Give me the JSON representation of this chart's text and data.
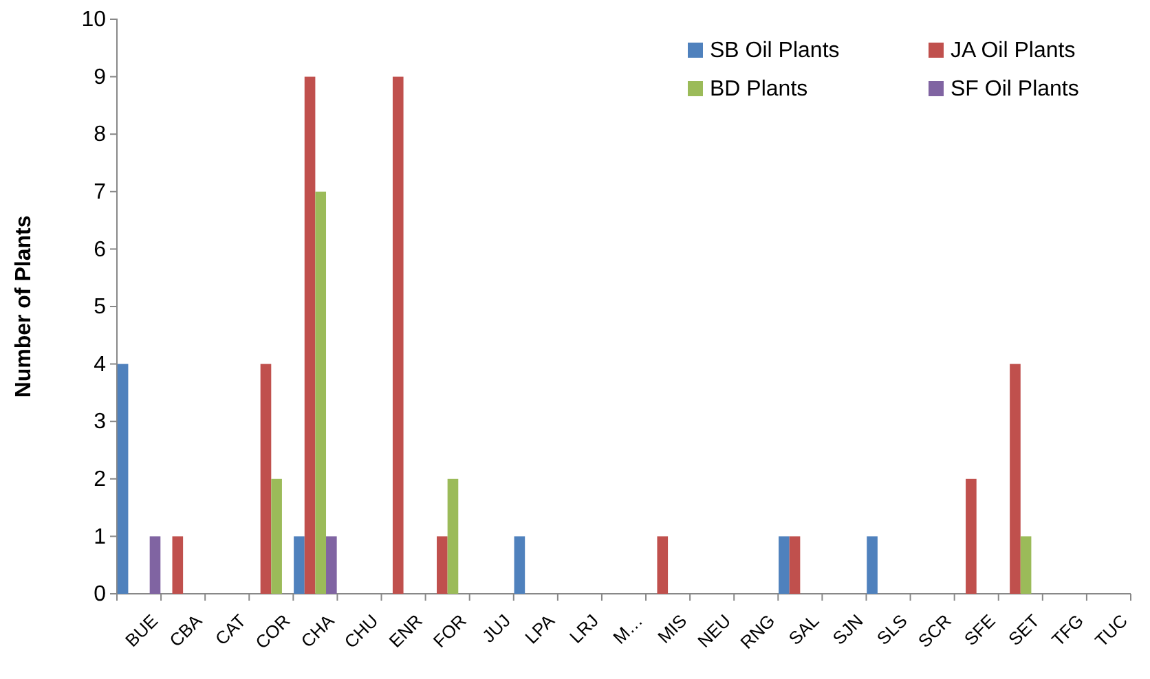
{
  "chart_data": {
    "type": "bar",
    "ylabel": "Number of Plants",
    "categories": [
      "BUE",
      "CBA",
      "CAT",
      "COR",
      "CHA",
      "CHU",
      "ENR",
      "FOR",
      "JUJ",
      "LPA",
      "LRJ",
      "M…",
      "MIS",
      "NEU",
      "RNG",
      "SAL",
      "SJN",
      "SLS",
      "SCR",
      "SFE",
      "SET",
      "TFG",
      "TUC"
    ],
    "series": [
      {
        "name": "SB Oil Plants",
        "color": "#4f81bd",
        "values": [
          4,
          0,
          0,
          0,
          1,
          0,
          0,
          0,
          0,
          1,
          0,
          0,
          0,
          0,
          0,
          1,
          0,
          1,
          0,
          0,
          0,
          0,
          0
        ]
      },
      {
        "name": "JA Oil Plants",
        "color": "#c0504d",
        "values": [
          0,
          1,
          0,
          4,
          9,
          0,
          9,
          1,
          0,
          0,
          0,
          0,
          1,
          0,
          0,
          1,
          0,
          0,
          0,
          2,
          4,
          0,
          0
        ]
      },
      {
        "name": "BD Plants",
        "color": "#9bbb59",
        "values": [
          0,
          0,
          0,
          2,
          7,
          0,
          0,
          2,
          0,
          0,
          0,
          0,
          0,
          0,
          0,
          0,
          0,
          0,
          0,
          0,
          1,
          0,
          0
        ]
      },
      {
        "name": "SF Oil Plants",
        "color": "#8064a2",
        "values": [
          1,
          0,
          0,
          0,
          1,
          0,
          0,
          0,
          0,
          0,
          0,
          0,
          0,
          0,
          0,
          0,
          0,
          0,
          0,
          0,
          0,
          0,
          0
        ]
      }
    ],
    "ylim": [
      0,
      10
    ],
    "yticks": [
      0,
      1,
      2,
      3,
      4,
      5,
      6,
      7,
      8,
      9,
      10
    ],
    "grid": false,
    "legend": "top right"
  }
}
